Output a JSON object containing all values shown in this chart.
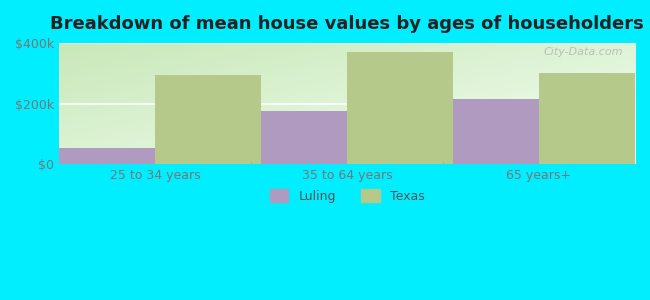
{
  "title": "Breakdown of mean house values by ages of householders",
  "categories": [
    "25 to 34 years",
    "35 to 64 years",
    "65 years+"
  ],
  "luling_values": [
    55000,
    175000,
    215000
  ],
  "texas_values": [
    295000,
    370000,
    300000
  ],
  "luling_color": "#b09ac0",
  "texas_color": "#b5c98a",
  "background_color": "#00eeff",
  "plot_bg_color_topleft": "#c8e8b8",
  "plot_bg_color_bottomright": "#f5fff5",
  "ylim": [
    0,
    400000
  ],
  "yticks": [
    0,
    200000,
    400000
  ],
  "ytick_labels": [
    "$0",
    "$200k",
    "$400k"
  ],
  "title_fontsize": 13,
  "legend_labels": [
    "Luling",
    "Texas"
  ],
  "bar_width": 0.55,
  "title_color": "#222222",
  "tick_color": "#777777",
  "grid_color": "#ffffff",
  "watermark_text": "City-Data.com"
}
